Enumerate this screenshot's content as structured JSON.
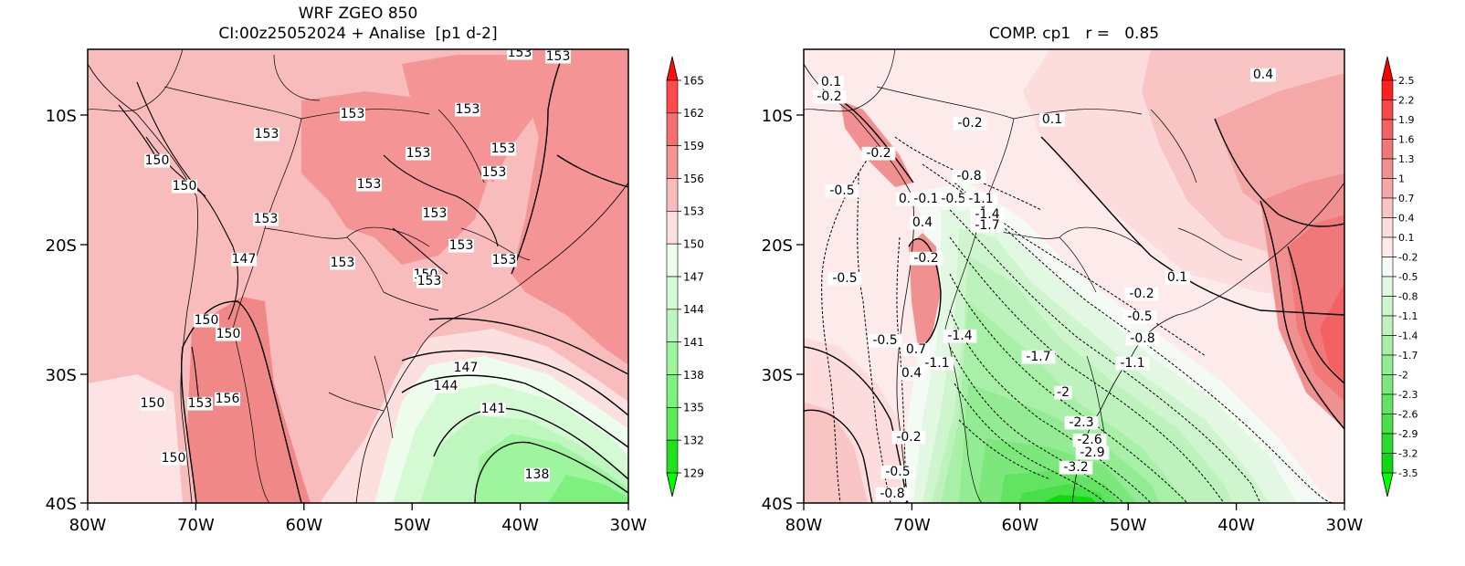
{
  "left_panel": {
    "title_line1": "WRF ZGEO 850",
    "title_line2": "CI:00z25052024 + Analise  [p1 d-2]",
    "x_ticks": [
      "80W",
      "70W",
      "60W",
      "50W",
      "40W",
      "30W"
    ],
    "y_ticks": [
      "10S",
      "20S",
      "30S",
      "40S"
    ],
    "contour_labels": [
      "153",
      "153",
      "153",
      "153",
      "153",
      "153",
      "153",
      "153",
      "153",
      "153",
      "153",
      "153",
      "150",
      "150",
      "147",
      "153",
      "153",
      "150",
      "153",
      "150",
      "150",
      "147",
      "144",
      "141",
      "138",
      "156",
      "150",
      "153",
      "150"
    ],
    "colorbar": {
      "labels": [
        "165",
        "162",
        "159",
        "156",
        "153",
        "150",
        "147",
        "144",
        "141",
        "138",
        "135",
        "132",
        "129"
      ],
      "colors": [
        "#ff1010",
        "#ff4b4b",
        "#f47070",
        "#f49494",
        "#f8bcbc",
        "#fce0e0",
        "#eefcee",
        "#d4fad4",
        "#bef7be",
        "#9df59d",
        "#7ef07e",
        "#58ea58",
        "#20e020",
        "#00ff00"
      ]
    }
  },
  "right_panel": {
    "title": "COMP. cp1   r =   0.85",
    "x_ticks": [
      "80W",
      "70W",
      "60W",
      "50W",
      "40W",
      "30W"
    ],
    "y_ticks": [
      "10S",
      "20S",
      "30S",
      "40S"
    ],
    "contour_labels": [
      "0.1",
      "-0.2",
      "-0.2",
      "0.1",
      "0.4",
      "-0.2",
      "-0.8",
      "-0.5",
      "0.4",
      "-0.1",
      "-0.5",
      "-1.1",
      "-1.4",
      "-1.7",
      "0.4",
      "-0.2",
      "-0.5",
      "-0.5",
      "-1.4",
      "-1.7",
      "0.7",
      "-1.1",
      "0.4",
      "-0.2",
      "-0.5",
      "-0.8",
      "-1.1",
      "-2",
      "-2.3",
      "-2.6",
      "-2.9",
      "-3.2",
      "-0.2",
      "-0.5",
      "-0.8",
      "0.1"
    ],
    "colorbar": {
      "labels": [
        "2.5",
        "2.2",
        "1.9",
        "1.6",
        "1.3",
        "1",
        "0.7",
        "0.4",
        "0.1",
        "-0.2",
        "-0.5",
        "-0.8",
        "-1.1",
        "-1.4",
        "-1.7",
        "-2",
        "-2.3",
        "-2.6",
        "-2.9",
        "-3.2",
        "-3.5"
      ],
      "colors": [
        "#ff0000",
        "#ff2020",
        "#f84848",
        "#f26262",
        "#f07878",
        "#f09090",
        "#f4a8a8",
        "#f8c4c4",
        "#fcdcdc",
        "#fdeaea",
        "#f4fbf4",
        "#e2f8e2",
        "#cff5cf",
        "#bdf2bd",
        "#a8efa8",
        "#93ec93",
        "#7ce87c",
        "#62e462",
        "#48e048",
        "#2cdc2c",
        "#10d810",
        "#00ff00"
      ]
    }
  }
}
